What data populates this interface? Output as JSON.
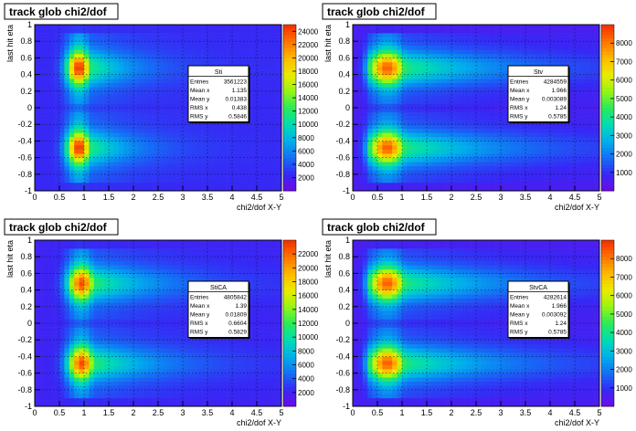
{
  "chart_data": [
    {
      "type": "heatmap",
      "title": "track glob chi2/dof",
      "xlabel": "chi2/dof  X-Y",
      "ylabel": "last hit eta",
      "xlim": [
        0,
        5
      ],
      "ylim": [
        -1,
        1
      ],
      "x_ticks": [
        "0",
        "0.5",
        "1",
        "1.5",
        "2",
        "2.5",
        "3",
        "3.5",
        "4",
        "4.5",
        "5"
      ],
      "y_ticks": [
        "-1",
        "-0.8",
        "-0.6",
        "-0.4",
        "-0.2",
        "0",
        "0.2",
        "0.4",
        "0.6",
        "0.8",
        "1"
      ],
      "z_ticks": [
        "2000",
        "4000",
        "6000",
        "8000",
        "10000",
        "12000",
        "14000",
        "16000",
        "18000",
        "20000",
        "22000",
        "24000"
      ],
      "zmax": 25000,
      "grid": true,
      "stats": {
        "name": "Sti",
        "rows": [
          [
            "Entries",
            "3561223"
          ],
          [
            "Mean x",
            "1.135"
          ],
          [
            "Mean y",
            "0.01383"
          ],
          [
            "RMS x",
            "0.438"
          ],
          [
            "RMS y",
            "0.5846"
          ]
        ]
      },
      "shape": {
        "mu": 0.9,
        "sx": 0.18,
        "tail": 0.9,
        "floor": 0.1,
        "zpeak": 25000,
        "cut": 0.1
      }
    },
    {
      "type": "heatmap",
      "title": "track glob chi2/dof",
      "xlabel": "chi2/dof  X-Y",
      "ylabel": "last hit eta",
      "xlim": [
        0,
        5
      ],
      "ylim": [
        -1,
        1
      ],
      "x_ticks": [
        "0",
        "0.5",
        "1",
        "1.5",
        "2",
        "2.5",
        "3",
        "3.5",
        "4",
        "4.5",
        "5"
      ],
      "y_ticks": [
        "-1",
        "-0.8",
        "-0.6",
        "-0.4",
        "-0.2",
        "0",
        "0.2",
        "0.4",
        "0.6",
        "0.8",
        "1"
      ],
      "z_ticks": [
        "1000",
        "2000",
        "3000",
        "4000",
        "5000",
        "6000",
        "7000",
        "8000"
      ],
      "zmax": 9000,
      "grid": true,
      "stats": {
        "name": "Stv",
        "rows": [
          [
            "Entries",
            "4284559"
          ],
          [
            "Mean x",
            "1.966"
          ],
          [
            "Mean y",
            "0.003089"
          ],
          [
            "RMS x",
            "1.24"
          ],
          [
            "RMS y",
            "0.5785"
          ]
        ]
      },
      "shape": {
        "mu": 0.7,
        "sx": 0.3,
        "tail": 2.2,
        "floor": 0.07,
        "zpeak": 8400,
        "cut": 0.05
      }
    },
    {
      "type": "heatmap",
      "title": "track glob chi2/dof",
      "xlabel": "chi2/dof  X-Y",
      "ylabel": "last hit eta",
      "xlim": [
        0,
        5
      ],
      "ylim": [
        -1,
        1
      ],
      "x_ticks": [
        "0",
        "0.5",
        "1",
        "1.5",
        "2",
        "2.5",
        "3",
        "3.5",
        "4",
        "4.5",
        "5"
      ],
      "y_ticks": [
        "-1",
        "-0.8",
        "-0.6",
        "-0.4",
        "-0.2",
        "0",
        "0.2",
        "0.4",
        "0.6",
        "0.8",
        "1"
      ],
      "z_ticks": [
        "2000",
        "4000",
        "6000",
        "8000",
        "10000",
        "12000",
        "14000",
        "16000",
        "18000",
        "20000",
        "22000"
      ],
      "zmax": 24000,
      "grid": true,
      "stats": {
        "name": "StiCA",
        "rows": [
          [
            "Entries",
            "4805842"
          ],
          [
            "Mean x",
            "1.39"
          ],
          [
            "Mean y",
            "0.01809"
          ],
          [
            "RMS x",
            "0.6604"
          ],
          [
            "RMS y",
            "0.5829"
          ]
        ]
      },
      "shape": {
        "mu": 0.95,
        "sx": 0.2,
        "tail": 1.4,
        "floor": 0.09,
        "zpeak": 23000,
        "cut": 0.06
      }
    },
    {
      "type": "heatmap",
      "title": "track glob chi2/dof",
      "xlabel": "chi2/dof  X-Y",
      "ylabel": "last hit eta",
      "xlim": [
        0,
        5
      ],
      "ylim": [
        -1,
        1
      ],
      "x_ticks": [
        "0",
        "0.5",
        "1",
        "1.5",
        "2",
        "2.5",
        "3",
        "3.5",
        "4",
        "4.5",
        "5"
      ],
      "y_ticks": [
        "-1",
        "-0.8",
        "-0.6",
        "-0.4",
        "-0.2",
        "0",
        "0.2",
        "0.4",
        "0.6",
        "0.8",
        "1"
      ],
      "z_ticks": [
        "1000",
        "2000",
        "3000",
        "4000",
        "5000",
        "6000",
        "7000",
        "8000"
      ],
      "zmax": 9000,
      "grid": true,
      "stats": {
        "name": "StvCA",
        "rows": [
          [
            "Entries",
            "4282614"
          ],
          [
            "Mean x",
            "1.966"
          ],
          [
            "Mean y",
            "0.003092"
          ],
          [
            "RMS x",
            "1.24"
          ],
          [
            "RMS y",
            "0.5785"
          ]
        ]
      },
      "shape": {
        "mu": 0.7,
        "sx": 0.3,
        "tail": 2.2,
        "floor": 0.07,
        "zpeak": 8400,
        "cut": 0.05
      }
    }
  ]
}
